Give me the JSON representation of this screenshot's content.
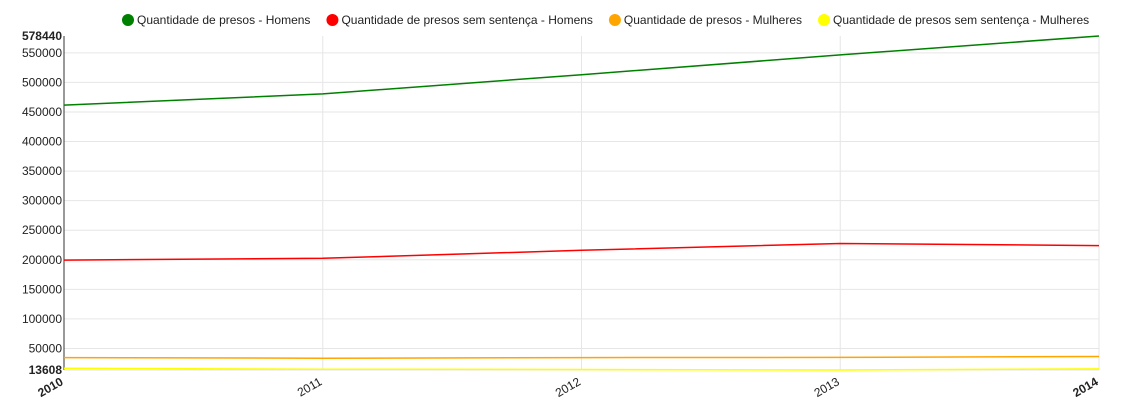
{
  "chart_data": {
    "type": "line",
    "categories": [
      "2010",
      "2011",
      "2012",
      "2013",
      "2014"
    ],
    "series": [
      {
        "name": "Quantidade de presos - Homens",
        "color": "#008000",
        "values": [
          461500,
          480500,
          513000,
          546500,
          578440
        ]
      },
      {
        "name": "Quantidade de presos sem sentença - Homens",
        "color": "#ff0000",
        "values": [
          199500,
          202500,
          216000,
          227500,
          224000
        ]
      },
      {
        "name": "Quantidade de presos - Mulheres",
        "color": "#ffa500",
        "values": [
          34500,
          33500,
          34500,
          35000,
          36500
        ]
      },
      {
        "name": "Quantidade de presos sem sentença - Mulheres",
        "color": "#ffff00",
        "values": [
          16500,
          15000,
          14500,
          13608,
          15500
        ]
      }
    ],
    "ylim": [
      13608,
      578440
    ],
    "yticks": [
      "50000",
      "100000",
      "150000",
      "200000",
      "250000",
      "300000",
      "350000",
      "400000",
      "450000",
      "500000",
      "550000"
    ],
    "ymin_label": "13608",
    "ymax_label": "578440",
    "legend_position": "top",
    "grid": true,
    "title": "",
    "xlabel": "",
    "ylabel": ""
  }
}
